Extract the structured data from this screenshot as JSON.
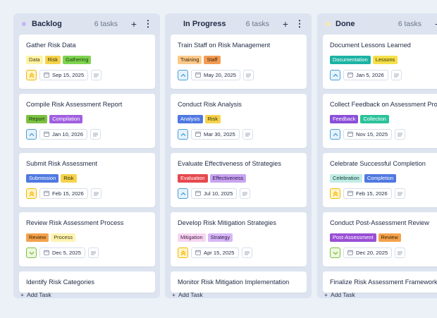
{
  "columns": [
    {
      "title": "Backlog",
      "count": "6 tasks",
      "dot": "#c4b5f5",
      "add_task": "Add Task",
      "cards": [
        {
          "title": "Gather Risk Data",
          "tags": [
            {
              "label": "Data",
              "bg": "#fdf3a6",
              "fg": "#4a3d00"
            },
            {
              "label": "Risk",
              "bg": "#f6d34c",
              "fg": "#3a2f00"
            },
            {
              "label": "Gathering",
              "bg": "#7ed34f",
              "fg": "#173b08"
            }
          ],
          "priority": "urgent",
          "date": "Sep 15, 2025"
        },
        {
          "title": "Compile Risk Assessment Report",
          "tags": [
            {
              "label": "Report",
              "bg": "#7cc242",
              "fg": "#183a06"
            },
            {
              "label": "Compilation",
              "bg": "#a05fe0",
              "fg": "#ffffff"
            }
          ],
          "priority": "high",
          "date": "Jan 10, 2026"
        },
        {
          "title": "Submit Risk Assessment",
          "tags": [
            {
              "label": "Submission",
              "bg": "#4f78e0",
              "fg": "#ffffff"
            },
            {
              "label": "Risk",
              "bg": "#f6d34c",
              "fg": "#3a2f00"
            }
          ],
          "priority": "urgent",
          "date": "Feb 15, 2026"
        },
        {
          "title": "Review Risk Assessment Process",
          "tags": [
            {
              "label": "Review",
              "bg": "#f4a24c",
              "fg": "#3a1f00"
            },
            {
              "label": "Process",
              "bg": "#fdf3b4",
              "fg": "#4a3d00"
            }
          ],
          "priority": "low",
          "date": "Dec 5, 2025"
        },
        {
          "title": "Identify Risk Categories",
          "tags": [],
          "priority": "",
          "date": ""
        }
      ]
    },
    {
      "title": "In Progress",
      "count": "6 tasks",
      "dot": "#dfe5f0",
      "add_task": "Add Task",
      "cards": [
        {
          "title": "Train Staff on Risk Management",
          "tags": [
            {
              "label": "Training",
              "bg": "#fbc98a",
              "fg": "#3a2200"
            },
            {
              "label": "Staff",
              "bg": "#f39c52",
              "fg": "#3a1a00"
            }
          ],
          "priority": "high",
          "date": "May 20, 2025"
        },
        {
          "title": "Conduct Risk Analysis",
          "tags": [
            {
              "label": "Analysis",
              "bg": "#4f78e0",
              "fg": "#ffffff"
            },
            {
              "label": "Risk",
              "bg": "#f6d34c",
              "fg": "#3a2f00"
            }
          ],
          "priority": "high",
          "date": "Mar 30, 2025"
        },
        {
          "title": "Evaluate Effectiveness of Strategies",
          "tags": [
            {
              "label": "Evaluation",
              "bg": "#e5484d",
              "fg": "#ffffff"
            },
            {
              "label": "Effectiveness",
              "bg": "#c8a4f0",
              "fg": "#2e1450"
            }
          ],
          "priority": "high",
          "date": "Jul 10, 2025"
        },
        {
          "title": "Develop Risk Mitigation Strategies",
          "tags": [
            {
              "label": "Mitigation",
              "bg": "#f6d6f2",
              "fg": "#4a1844"
            },
            {
              "label": "Strategy",
              "bg": "#d7b8f5",
              "fg": "#2e1450"
            }
          ],
          "priority": "urgent",
          "date": "Apr 15, 2025"
        },
        {
          "title": "Monitor Risk Mitigation Implementation",
          "tags": [],
          "priority": "",
          "date": ""
        }
      ]
    },
    {
      "title": "Done",
      "count": "6 tasks",
      "dot": "#fbe9a8",
      "add_task": "Add Task",
      "cards": [
        {
          "title": "Document Lessons Learned",
          "tags": [
            {
              "label": "Documentation",
              "bg": "#1bb3a4",
              "fg": "#ffffff"
            },
            {
              "label": "Lessons",
              "bg": "#f6e04a",
              "fg": "#3a3200"
            }
          ],
          "priority": "high",
          "date": "Jan 5, 2026"
        },
        {
          "title": "Collect Feedback on Assessment Process",
          "tags": [
            {
              "label": "Feedback",
              "bg": "#8b4fd9",
              "fg": "#ffffff"
            },
            {
              "label": "Collection",
              "bg": "#2cc29a",
              "fg": "#ffffff"
            }
          ],
          "priority": "high",
          "date": "Nov 15, 2025"
        },
        {
          "title": "Celebrate Successful Completion",
          "tags": [
            {
              "label": "Celebration",
              "bg": "#c2ece6",
              "fg": "#0f3b35"
            },
            {
              "label": "Completion",
              "bg": "#4f78e0",
              "fg": "#ffffff"
            }
          ],
          "priority": "urgent",
          "date": "Feb 15, 2026"
        },
        {
          "title": "Conduct Post-Assessment Review",
          "tags": [
            {
              "label": "Post-Assessment",
              "bg": "#9a4fd6",
              "fg": "#ffffff"
            },
            {
              "label": "Review",
              "bg": "#f4a24c",
              "fg": "#3a1f00"
            }
          ],
          "priority": "low",
          "date": "Dec 20, 2025"
        },
        {
          "title": "Finalize Risk Assessment Framework",
          "tags": [],
          "priority": "",
          "date": ""
        }
      ]
    }
  ],
  "icons": {
    "add": "plus-icon",
    "more": "vertical-dots-icon",
    "date": "calendar-icon",
    "description": "lines-icon"
  },
  "colors": {
    "urgent": "#f5b800",
    "high": "#4a9fd8",
    "low": "#7cbf3c"
  }
}
